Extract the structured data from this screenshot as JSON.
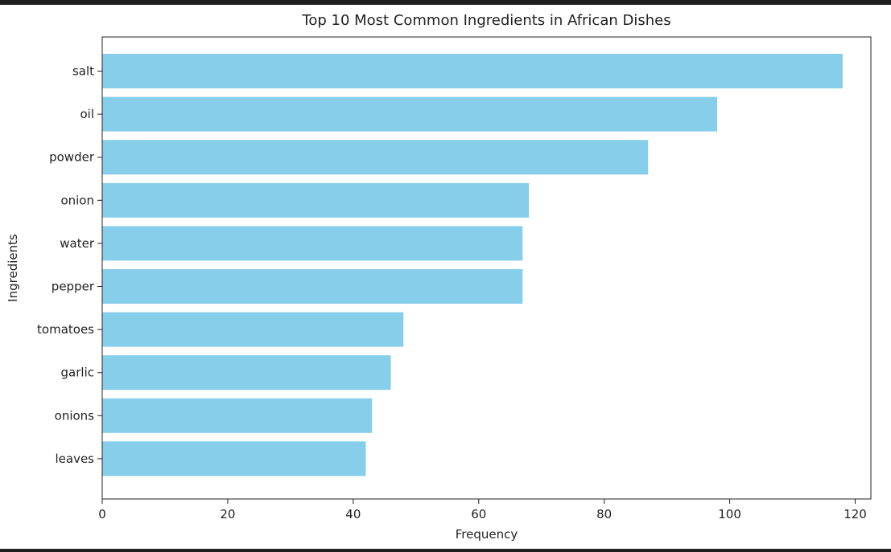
{
  "chart_data": {
    "type": "bar",
    "orientation": "horizontal",
    "title": "Top 10 Most Common Ingredients in African Dishes",
    "xlabel": "Frequency",
    "ylabel": "Ingredients",
    "categories": [
      "salt",
      "oil",
      "powder",
      "onion",
      "water",
      "pepper",
      "tomatoes",
      "garlic",
      "onions",
      "leaves"
    ],
    "values": [
      118,
      98,
      87,
      68,
      67,
      67,
      48,
      46,
      43,
      42
    ],
    "xlim": [
      0,
      122.5
    ],
    "xticks": [
      0,
      20,
      40,
      60,
      80,
      100,
      120
    ],
    "grid": false,
    "bar_color": "#87ceeb"
  }
}
